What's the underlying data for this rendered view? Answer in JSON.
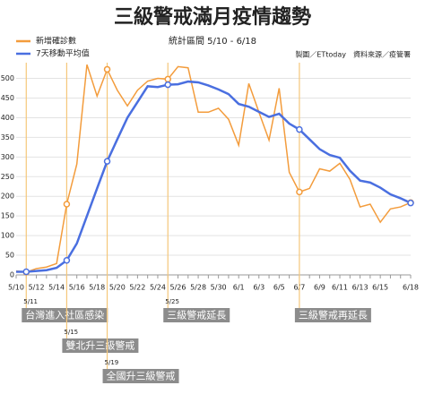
{
  "chart_data": {
    "type": "line",
    "title": "三級警戒滿月疫情趨勢",
    "subtitle": "統計區間 5/10 - 6/18",
    "source": "製圖／ETtoday　資料來源／疫管署",
    "categories": [
      "5/10",
      null,
      "5/12",
      null,
      "5/14",
      null,
      "5/16",
      null,
      "5/18",
      null,
      "5/20",
      null,
      "5/22",
      null,
      "5/24",
      null,
      "5/26",
      null,
      "5/28",
      null,
      "5/30",
      null,
      "6/1",
      null,
      "6/3",
      null,
      "6/5",
      null,
      "6/7",
      null,
      "6/9",
      null,
      "6/11",
      null,
      "6/13",
      null,
      "6/15",
      null,
      null,
      "6/18"
    ],
    "series": [
      {
        "name": "新增確診數",
        "color": "#f39c3c",
        "values": [
          10,
          7,
          16,
          20,
          29,
          180,
          282,
          535,
          455,
          523,
          470,
          430,
          470,
          493,
          500,
          498,
          530,
          527,
          414,
          414,
          424,
          396,
          330,
          487,
          414,
          343,
          475,
          261,
          211,
          220,
          270,
          264,
          284,
          243,
          173,
          180,
          134,
          168,
          173,
          184
        ]
      },
      {
        "name": "7天移動平均值",
        "color": "#4a6fe0",
        "values": [
          8,
          8,
          10,
          12,
          18,
          37,
          80,
          150,
          220,
          289,
          345,
          400,
          440,
          480,
          478,
          484,
          485,
          492,
          490,
          482,
          472,
          460,
          435,
          428,
          415,
          402,
          410,
          385,
          370,
          345,
          320,
          305,
          298,
          265,
          240,
          235,
          222,
          205,
          195,
          183
        ]
      }
    ],
    "ylim": [
      0,
      540
    ],
    "yticks": [
      0,
      50,
      100,
      150,
      200,
      250,
      300,
      350,
      400,
      450,
      500
    ],
    "grid": true,
    "annotations": [
      {
        "x": 1,
        "date": "5/11",
        "text": "台灣進入社區感染"
      },
      {
        "x": 5,
        "date": "5/15",
        "text": "雙北升三級警戒"
      },
      {
        "x": 9,
        "date": "5/19",
        "text": "全國升三級警戒"
      },
      {
        "x": 15,
        "date": "5/25",
        "text": "三級警戒延長"
      },
      {
        "x": 28,
        "text": "三級警戒再延長"
      }
    ]
  }
}
